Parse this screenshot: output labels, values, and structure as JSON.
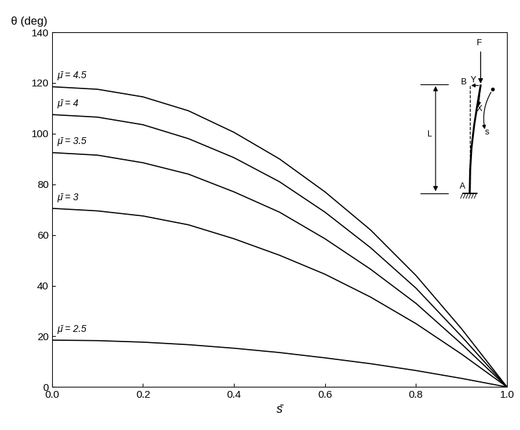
{
  "chart_data": {
    "type": "line",
    "x_label": "s̄",
    "y_label": "θ (deg)",
    "x": [
      0.0,
      0.1,
      0.2,
      0.3,
      0.4,
      0.5,
      0.6,
      0.7,
      0.8,
      0.9,
      1.0
    ],
    "series": [
      {
        "name": "μ̄ = 4.5",
        "color": "#000000",
        "values": [
          118.5,
          117.5,
          114.5,
          109,
          100.5,
          90,
          77,
          62,
          44,
          23,
          0
        ]
      },
      {
        "name": "μ̄ = 4",
        "color": "#000000",
        "values": [
          107.5,
          106.5,
          103.5,
          98,
          90.5,
          81,
          69,
          55,
          39,
          20,
          0
        ]
      },
      {
        "name": "μ̄ = 3.5",
        "color": "#000000",
        "values": [
          92.5,
          91.5,
          88.5,
          84,
          77,
          69,
          58.5,
          46.5,
          33,
          17,
          0
        ]
      },
      {
        "name": "μ̄ = 3",
        "color": "#000000",
        "values": [
          70.5,
          69.5,
          67.5,
          64,
          58.5,
          52,
          44.5,
          35.5,
          25,
          13,
          0
        ]
      },
      {
        "name": "μ̄ = 2.5",
        "color": "#000000",
        "values": [
          18.5,
          18.3,
          17.7,
          16.7,
          15.3,
          13.6,
          11.5,
          9.2,
          6.5,
          3.4,
          0
        ]
      }
    ],
    "xlim": [
      0.0,
      1.0
    ],
    "ylim": [
      0,
      140
    ],
    "xticks": [
      {
        "value": 0.0,
        "label": "0.0"
      },
      {
        "value": 0.2,
        "label": "0.2"
      },
      {
        "value": 0.4,
        "label": "0.4"
      },
      {
        "value": 0.6,
        "label": "0.6"
      },
      {
        "value": 0.8,
        "label": "0.8"
      },
      {
        "value": 1.0,
        "label": "1.0"
      }
    ],
    "yticks": [
      0,
      20,
      40,
      60,
      80,
      100,
      120,
      140
    ],
    "grid": false,
    "annotations": [
      "F",
      "B",
      "Y",
      "X",
      "s",
      "L",
      "A"
    ]
  }
}
